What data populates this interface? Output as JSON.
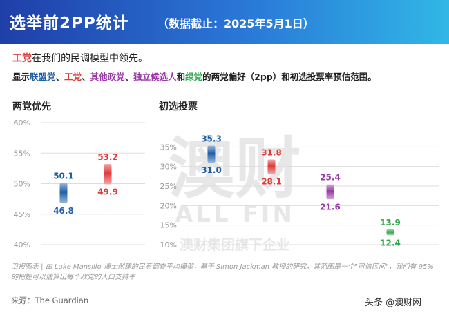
{
  "header": {
    "title": "选举前2PP统计",
    "subtitle": "（数据截止：2025年5月1日）"
  },
  "intro": {
    "line1_labor": "工党",
    "line1_rest": "在我们的民调模型中领先。",
    "line2_prefix": "显示",
    "line2_coalition": "联盟党",
    "sep1": "、",
    "line2_labor": "工党",
    "sep2": "、",
    "line2_others": "其他政党",
    "sep3": "、",
    "line2_independent": "独立候选人",
    "line2_and": "和",
    "line2_greens": "绿党",
    "line2_suffix": "的两党偏好（2pp）和初选投票率预估范围。"
  },
  "watermark": {
    "cn": "澳财",
    "en": "ALL FIN",
    "tagline": "澳财集团旗下企业"
  },
  "footnote": "卫报图表 | 由 Luke Mansillo 博士创建的民意调查平均模型，基于 Simon Jackman 教授的研究，其范围是一个\"可信区间\"，我们有 95% 的把握可以估算出每个政党的人口支持率",
  "source": "来源：The Guardian",
  "brand": "头条 @澳财网",
  "colors": {
    "coalition": "#1f5fa8",
    "labor": "#e03a3a",
    "others": "#9a3aa8",
    "greens": "#2aa84a",
    "grid": "#dddddd",
    "axis_text": "#999999"
  },
  "chart_data": [
    {
      "type": "bar",
      "subtype": "range",
      "title": "两党优先",
      "ylim": [
        40,
        60
      ],
      "yticks": [
        "40%",
        "45%",
        "50%",
        "55%",
        "60%"
      ],
      "grid": true,
      "series": [
        {
          "party": "coalition",
          "low": 46.8,
          "high": 50.1,
          "low_label": "46.8",
          "high_label": "50.1"
        },
        {
          "party": "labor",
          "low": 49.9,
          "high": 53.2,
          "low_label": "49.9",
          "high_label": "53.2"
        }
      ]
    },
    {
      "type": "bar",
      "subtype": "range",
      "title": "初选投票",
      "ylim": [
        10,
        40
      ],
      "yticks": [
        "10%",
        "15%",
        "20%",
        "25%",
        "30%",
        "35%"
      ],
      "grid": true,
      "series": [
        {
          "party": "coalition",
          "low": 31.0,
          "high": 35.3,
          "low_label": "31.0",
          "high_label": "35.3"
        },
        {
          "party": "labor",
          "low": 28.1,
          "high": 31.8,
          "low_label": "28.1",
          "high_label": "31.8"
        },
        {
          "party": "others",
          "low": 21.6,
          "high": 25.4,
          "low_label": "21.6",
          "high_label": "25.4"
        },
        {
          "party": "greens",
          "low": 12.4,
          "high": 13.9,
          "low_label": "12.4",
          "high_label": "13.9"
        }
      ]
    }
  ]
}
